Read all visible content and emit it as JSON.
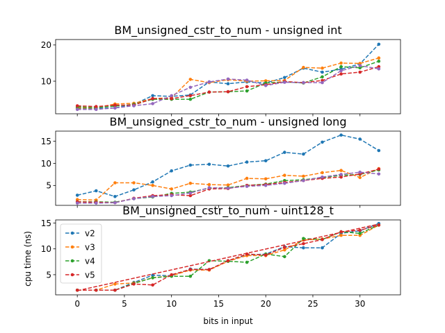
{
  "chart_data": [
    {
      "type": "line",
      "title": "BM_unsigned_cstr_to_num - unsigned int",
      "xlabel": "",
      "ylabel": "",
      "xlim": [
        -2.3,
        34.3
      ],
      "ylim": [
        1.0,
        21.5
      ],
      "yticks": [
        10,
        20
      ],
      "xticks": [
        0,
        5,
        10,
        15,
        20,
        25,
        30
      ],
      "show_xtick_labels": false,
      "grid": false,
      "series": [
        {
          "color": "#1f77b4",
          "x": [
            0,
            2,
            4,
            6,
            8,
            10,
            12,
            14,
            16,
            18,
            20,
            22,
            24,
            26,
            28,
            30,
            32
          ],
          "y": [
            2.5,
            2.5,
            2.6,
            3.6,
            6.0,
            5.8,
            6.2,
            9.8,
            9.3,
            9.8,
            9.5,
            11.0,
            13.6,
            12.5,
            13.3,
            14.8,
            20.2
          ]
        },
        {
          "color": "#ff7f0e",
          "x": [
            0,
            2,
            4,
            6,
            8,
            10,
            12,
            14,
            16,
            18,
            20,
            22,
            24,
            26,
            28,
            30,
            32
          ],
          "y": [
            2.6,
            2.6,
            3.7,
            3.9,
            5.2,
            5.4,
            10.5,
            9.6,
            10.4,
            10.0,
            10.1,
            10.2,
            13.8,
            13.6,
            15.0,
            14.9,
            16.4
          ]
        },
        {
          "color": "#2ca02c",
          "x": [
            0,
            2,
            4,
            6,
            8,
            10,
            12,
            14,
            16,
            18,
            20,
            22,
            24,
            26,
            28,
            30,
            32
          ],
          "y": [
            2.9,
            2.7,
            3.1,
            3.6,
            5.0,
            5.0,
            5.0,
            7.0,
            7.1,
            7.3,
            9.5,
            9.8,
            9.5,
            11.2,
            14.0,
            13.7,
            15.5
          ]
        },
        {
          "color": "#d62728",
          "x": [
            0,
            2,
            4,
            6,
            8,
            10,
            12,
            14,
            16,
            18,
            20,
            22,
            24,
            26,
            28,
            30,
            32
          ],
          "y": [
            3.2,
            3.0,
            3.4,
            3.4,
            5.2,
            5.2,
            6.0,
            7.0,
            7.1,
            8.5,
            9.0,
            9.9,
            9.6,
            10.2,
            12.0,
            12.5,
            14.0
          ]
        },
        {
          "color": "#9467bd",
          "x": [
            0,
            2,
            4,
            6,
            8,
            10,
            12,
            14,
            16,
            18,
            20,
            22,
            24,
            26,
            28,
            30,
            32
          ],
          "y": [
            2.2,
            2.2,
            2.6,
            3.2,
            3.8,
            6.0,
            8.3,
            9.8,
            10.6,
            10.3,
            8.8,
            9.7,
            9.6,
            9.6,
            12.9,
            14.3,
            13.4
          ]
        }
      ]
    },
    {
      "type": "line",
      "title": "BM_unsigned_cstr_to_num - unsigned long",
      "xlabel": "",
      "ylabel": "",
      "xlim": [
        -2.3,
        34.3
      ],
      "ylim": [
        0.5,
        17.3
      ],
      "yticks": [
        5,
        10,
        15
      ],
      "xticks": [
        0,
        5,
        10,
        15,
        20,
        25,
        30
      ],
      "show_xtick_labels": false,
      "grid": false,
      "series": [
        {
          "color": "#1f77b4",
          "x": [
            0,
            2,
            4,
            6,
            8,
            10,
            12,
            14,
            16,
            18,
            20,
            22,
            24,
            26,
            28,
            30,
            32
          ],
          "y": [
            2.8,
            3.8,
            2.5,
            4.0,
            5.8,
            8.3,
            9.6,
            9.8,
            9.4,
            10.3,
            10.6,
            12.5,
            12.1,
            14.8,
            16.4,
            15.5,
            12.9
          ]
        },
        {
          "color": "#ff7f0e",
          "x": [
            0,
            2,
            4,
            6,
            8,
            10,
            12,
            14,
            16,
            18,
            20,
            22,
            24,
            26,
            28,
            30,
            32
          ],
          "y": [
            1.8,
            1.7,
            5.6,
            5.6,
            5.0,
            4.2,
            5.5,
            5.2,
            5.1,
            6.6,
            6.5,
            7.3,
            7.1,
            7.9,
            8.4,
            6.8,
            8.8
          ]
        },
        {
          "color": "#2ca02c",
          "x": [
            0,
            2,
            4,
            6,
            8,
            10,
            12,
            14,
            16,
            18,
            20,
            22,
            24,
            26,
            28,
            30,
            32
          ],
          "y": [
            1.3,
            1.3,
            1.2,
            2.0,
            2.4,
            3.2,
            3.5,
            4.4,
            4.5,
            5.0,
            5.3,
            6.1,
            6.3,
            6.8,
            7.3,
            7.5,
            8.5
          ]
        },
        {
          "color": "#d62728",
          "x": [
            0,
            2,
            4,
            6,
            8,
            10,
            12,
            14,
            16,
            18,
            20,
            22,
            24,
            26,
            28,
            30,
            32
          ],
          "y": [
            1.3,
            1.2,
            1.1,
            2.1,
            2.7,
            2.9,
            2.7,
            4.2,
            4.3,
            5.0,
            5.2,
            5.7,
            6.1,
            6.6,
            6.9,
            7.6,
            8.7
          ]
        },
        {
          "color": "#9467bd",
          "x": [
            0,
            2,
            4,
            6,
            8,
            10,
            12,
            14,
            16,
            18,
            20,
            22,
            24,
            26,
            28,
            30,
            32
          ],
          "y": [
            1.0,
            1.0,
            1.1,
            2.0,
            2.5,
            2.7,
            3.3,
            4.5,
            4.4,
            4.8,
            5.0,
            5.5,
            6.1,
            6.9,
            7.5,
            8.0,
            7.6
          ]
        }
      ]
    },
    {
      "type": "line",
      "title": "BM_unsigned_cstr_to_num - uint128_t",
      "xlabel": "bits in input",
      "ylabel": "cpu time (ns)",
      "xlim": [
        -2.3,
        34.3
      ],
      "ylim": [
        1.1,
        15.6
      ],
      "yticks": [
        5,
        10,
        15
      ],
      "xticks": [
        0,
        5,
        10,
        15,
        20,
        25,
        30
      ],
      "show_xtick_labels": true,
      "grid": false,
      "legend": {
        "placement": "upper-left",
        "entries": [
          "v2",
          "v3",
          "v4",
          "v5"
        ]
      },
      "series": [
        {
          "name": "v2",
          "color": "#1f77b4",
          "x": [
            0,
            2,
            4,
            6,
            8,
            10,
            12,
            14,
            16,
            18,
            20,
            22,
            24,
            26,
            28,
            30,
            32
          ],
          "y": [
            2.0,
            2.0,
            2.0,
            3.5,
            4.9,
            4.8,
            6.1,
            6.0,
            7.7,
            8.8,
            9.0,
            10.4,
            10.2,
            10.2,
            13.0,
            13.5,
            14.9
          ]
        },
        {
          "name": "v3",
          "color": "#ff7f0e",
          "x": [
            0,
            2,
            4,
            6,
            8,
            10,
            12,
            14,
            16,
            18,
            20,
            22,
            24,
            26,
            28,
            30,
            32
          ],
          "y": [
            2.0,
            2.0,
            3.2,
            3.4,
            4.4,
            4.8,
            5.9,
            5.9,
            7.6,
            8.7,
            8.7,
            9.8,
            11.7,
            11.9,
            12.6,
            12.6,
            14.6
          ]
        },
        {
          "name": "v4",
          "color": "#2ca02c",
          "x": [
            0,
            2,
            4,
            6,
            8,
            10,
            12,
            14,
            16,
            18,
            20,
            22,
            24,
            26,
            28,
            30,
            32
          ],
          "y": [
            2.0,
            2.0,
            2.0,
            3.3,
            4.4,
            4.7,
            4.7,
            7.7,
            7.6,
            7.4,
            9.0,
            8.5,
            12.0,
            11.8,
            13.3,
            13.0,
            14.6
          ]
        },
        {
          "name": "v5",
          "color": "#d62728",
          "x": [
            0,
            2,
            4,
            6,
            8,
            10,
            12,
            14,
            16,
            18,
            20,
            22,
            24,
            26,
            28,
            30,
            32
          ],
          "y": [
            2.0,
            2.0,
            2.0,
            3.2,
            3.0,
            5.0,
            6.0,
            6.0,
            7.7,
            9.0,
            8.8,
            10.3,
            11.0,
            11.8,
            13.3,
            13.6,
            14.6
          ],
          "fit": {
            "x": [
              0,
              32
            ],
            "y": [
              1.9,
              14.8
            ]
          }
        }
      ]
    }
  ]
}
